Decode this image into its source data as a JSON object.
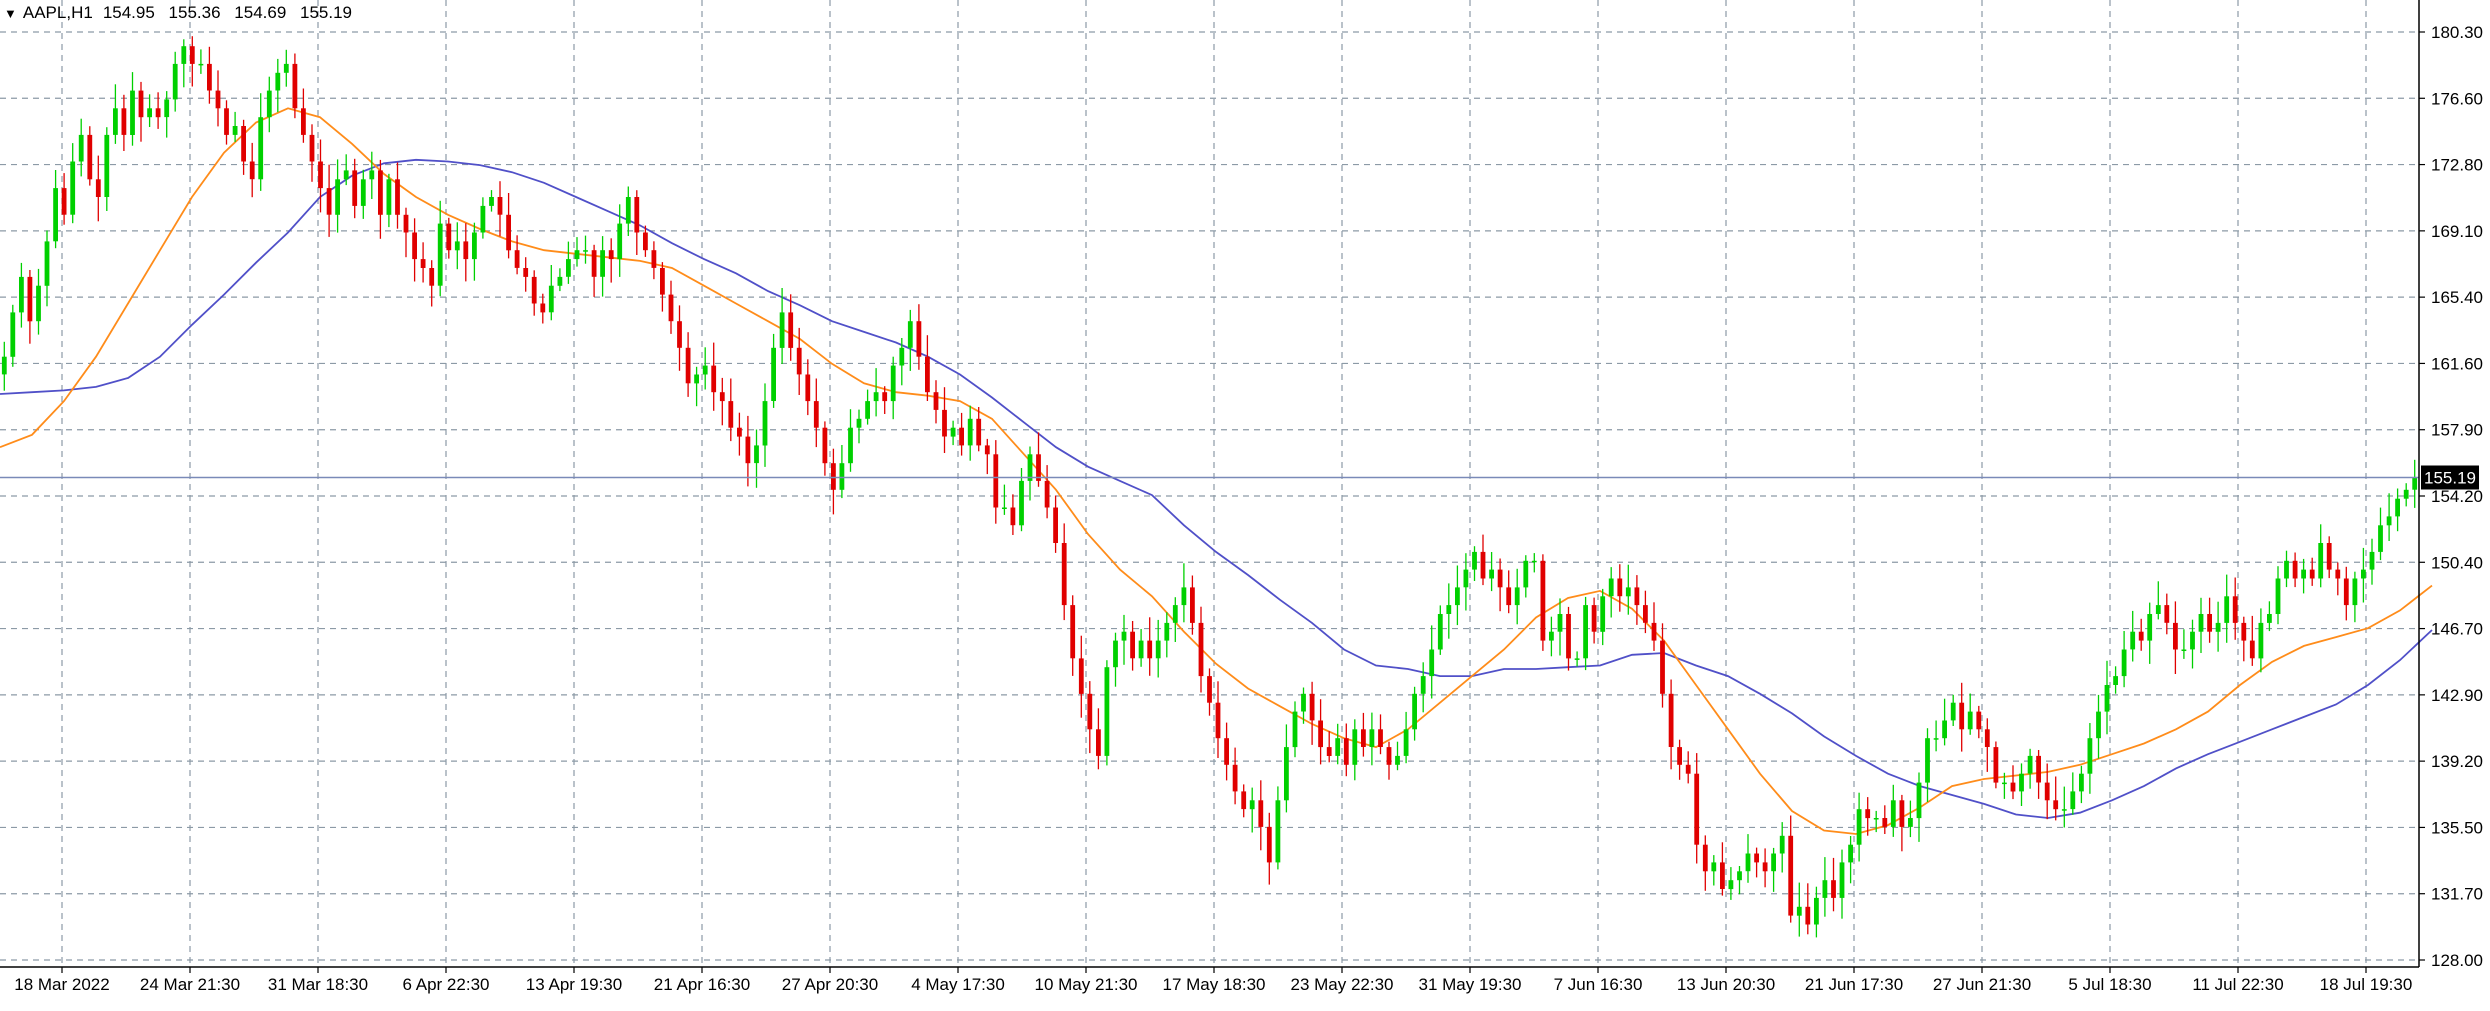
{
  "header": {
    "symbol": "AAPL,H1",
    "open": "154.95",
    "high": "155.36",
    "low": "154.69",
    "close": "155.19"
  },
  "price_label": "155.19",
  "chart_data": {
    "type": "candlestick",
    "symbol": "AAPL",
    "timeframe": "H1",
    "y_ticks": [
      "180.30",
      "176.60",
      "172.80",
      "169.10",
      "165.40",
      "161.60",
      "157.90",
      "154.20",
      "150.40",
      "146.70",
      "142.90",
      "139.20",
      "135.50",
      "131.70",
      "128.00"
    ],
    "ylim": [
      127.2,
      181.7
    ],
    "x_ticks": [
      "18 Mar 2022",
      "24 Mar 21:30",
      "31 Mar 18:30",
      "6 Apr 22:30",
      "13 Apr 19:30",
      "21 Apr 16:30",
      "27 Apr 20:30",
      "4 May 17:30",
      "10 May 21:30",
      "17 May 18:30",
      "23 May 22:30",
      "31 May 19:30",
      "7 Jun 16:30",
      "13 Jun 20:30",
      "21 Jun 17:30",
      "27 Jun 21:30",
      "5 Jul 18:30",
      "11 Jul 22:30",
      "18 Jul 19:30"
    ],
    "grid": true,
    "current_price": 155.19,
    "colors": {
      "up": "#00d000",
      "down": "#e00000",
      "ma_fast": "#ff8c1a",
      "ma_slow": "#5050c8",
      "price_line": "#7a8ab8",
      "grid": "#8c9aa6"
    },
    "closes": [
      162,
      164.5,
      166.5,
      164,
      166,
      168.5,
      171.5,
      170,
      173,
      174.5,
      172,
      171,
      174.5,
      176,
      174.5,
      177,
      175.5,
      176,
      175.5,
      176.5,
      178.5,
      179.5,
      178.5,
      178.5,
      177,
      176,
      174.5,
      175,
      173,
      172,
      175.5,
      177,
      178,
      178.5,
      176,
      174.5,
      173,
      171.5,
      170,
      172,
      172.5,
      170.5,
      172,
      172.5,
      170,
      172,
      170,
      169,
      167.5,
      167,
      166,
      169.5,
      168,
      168.5,
      167.5,
      169,
      170.5,
      171,
      170,
      168,
      167,
      166.5,
      165,
      164.5,
      166,
      166.5,
      167.5,
      168,
      168,
      166.5,
      168,
      167.5,
      169.5,
      171,
      169,
      168,
      167,
      165.5,
      164,
      162.5,
      160.5,
      161,
      161.5,
      160,
      159.5,
      158,
      157.5,
      156,
      157,
      159.5,
      162.5,
      164.5,
      162.5,
      161,
      159.5,
      158,
      156,
      154.5,
      156,
      158,
      158.5,
      159.5,
      160,
      159.5,
      161.5,
      162.5,
      164,
      162,
      160,
      159,
      157.5,
      158,
      157,
      158.5,
      157,
      156.5,
      153.5,
      153.5,
      152.5,
      155,
      156.5,
      155,
      153.5,
      151.5,
      148,
      145,
      143,
      141,
      139.5,
      144.5,
      146,
      146.5,
      145,
      146,
      145,
      146,
      147,
      148,
      149,
      147,
      144,
      142.5,
      140.5,
      139,
      137.5,
      136.5,
      137,
      135.5,
      133.5,
      137,
      140,
      142,
      143,
      141.5,
      140,
      139.5,
      140.5,
      139,
      141,
      140,
      141,
      140,
      139,
      139.5,
      141,
      143,
      144,
      145.5,
      147.5,
      148,
      149,
      150,
      151,
      149.5,
      150,
      149,
      148,
      149,
      150.5,
      150.5,
      146,
      146.5,
      147.5,
      145,
      145,
      148,
      146.5,
      148.5,
      149.5,
      148.5,
      149,
      148,
      147,
      146,
      143,
      140,
      139,
      138.5,
      134.5,
      133,
      133.5,
      132,
      132.5,
      133,
      134,
      133.5,
      133,
      134,
      135,
      130.5,
      131,
      130,
      131.5,
      132.5,
      131.5,
      133.5,
      134.5,
      136.5,
      136,
      136,
      135.5,
      137,
      135.5,
      136,
      138,
      140.5,
      140.5,
      141.5,
      142.5,
      141,
      142,
      141,
      140,
      138,
      138,
      137.5,
      138.5,
      139.5,
      138,
      137,
      136.5,
      136.5,
      137.5,
      138.5,
      140.5,
      142,
      143.5,
      144,
      145.5,
      146.5,
      146,
      147.5,
      148,
      147,
      145.5,
      145.5,
      146.5,
      147.5,
      146.5,
      147,
      148.5,
      147,
      146,
      145,
      147,
      147.5,
      149.5,
      150.5,
      149.5,
      150,
      149.5,
      151.5,
      150,
      149.5,
      148,
      149.5,
      150,
      151,
      152.5,
      153,
      154,
      154.5,
      155.19
    ],
    "ma_fast_path": [
      [
        0,
        156.9
      ],
      [
        0.5,
        157.6
      ],
      [
        1,
        159.5
      ],
      [
        1.5,
        162.0
      ],
      [
        2,
        165.0
      ],
      [
        2.5,
        168.0
      ],
      [
        3,
        171.0
      ],
      [
        3.5,
        173.5
      ],
      [
        4,
        175.2
      ],
      [
        4.5,
        176.0
      ],
      [
        5,
        175.5
      ],
      [
        5.5,
        174.0
      ],
      [
        6,
        172.3
      ],
      [
        6.5,
        171.0
      ],
      [
        7,
        170.0
      ],
      [
        7.5,
        169.2
      ],
      [
        8,
        168.5
      ],
      [
        8.5,
        168.0
      ],
      [
        9,
        167.8
      ],
      [
        9.5,
        167.6
      ],
      [
        10,
        167.4
      ],
      [
        10.5,
        167.0
      ],
      [
        11,
        166.0
      ],
      [
        11.5,
        165.0
      ],
      [
        12,
        164.0
      ],
      [
        12.5,
        163.0
      ],
      [
        13,
        161.6
      ],
      [
        13.5,
        160.5
      ],
      [
        14,
        160.0
      ],
      [
        14.5,
        159.8
      ],
      [
        15,
        159.5
      ],
      [
        15.5,
        158.5
      ],
      [
        16,
        156.5
      ],
      [
        16.5,
        154.5
      ],
      [
        17,
        152.0
      ],
      [
        17.5,
        150.0
      ],
      [
        18,
        148.5
      ],
      [
        18.5,
        146.5
      ],
      [
        19,
        144.7
      ],
      [
        19.5,
        143.3
      ],
      [
        20,
        142.3
      ],
      [
        20.5,
        141.3
      ],
      [
        21,
        140.5
      ],
      [
        21.5,
        140.0
      ],
      [
        22,
        141.0
      ],
      [
        22.5,
        142.5
      ],
      [
        23,
        144.0
      ],
      [
        23.5,
        145.5
      ],
      [
        24,
        147.3
      ],
      [
        24.5,
        148.4
      ],
      [
        25,
        148.8
      ],
      [
        25.5,
        147.8
      ],
      [
        26,
        146.0
      ],
      [
        26.5,
        143.5
      ],
      [
        27,
        141.0
      ],
      [
        27.5,
        138.5
      ],
      [
        28,
        136.4
      ],
      [
        28.5,
        135.3
      ],
      [
        29,
        135.1
      ],
      [
        29.5,
        135.6
      ],
      [
        30,
        136.6
      ],
      [
        30.5,
        137.8
      ],
      [
        31,
        138.2
      ],
      [
        31.5,
        138.4
      ],
      [
        32,
        138.6
      ],
      [
        32.5,
        139.0
      ],
      [
        33,
        139.6
      ],
      [
        33.5,
        140.2
      ],
      [
        34,
        141.0
      ],
      [
        34.5,
        142.0
      ],
      [
        35,
        143.5
      ],
      [
        35.5,
        144.8
      ],
      [
        36,
        145.7
      ],
      [
        36.5,
        146.2
      ],
      [
        37,
        146.7
      ],
      [
        37.5,
        147.7
      ],
      [
        38,
        149.1
      ]
    ],
    "ma_slow_path": [
      [
        0,
        159.9
      ],
      [
        0.5,
        160.0
      ],
      [
        1,
        160.1
      ],
      [
        1.5,
        160.3
      ],
      [
        2,
        160.8
      ],
      [
        2.5,
        162.0
      ],
      [
        3,
        163.8
      ],
      [
        3.5,
        165.5
      ],
      [
        4,
        167.3
      ],
      [
        4.5,
        169.0
      ],
      [
        5,
        171.0
      ],
      [
        5.5,
        172.2
      ],
      [
        6,
        172.9
      ],
      [
        6.5,
        173.1
      ],
      [
        7,
        173.0
      ],
      [
        7.5,
        172.8
      ],
      [
        8,
        172.4
      ],
      [
        8.5,
        171.8
      ],
      [
        9,
        171.0
      ],
      [
        9.5,
        170.2
      ],
      [
        10,
        169.4
      ],
      [
        10.5,
        168.4
      ],
      [
        11,
        167.5
      ],
      [
        11.5,
        166.7
      ],
      [
        12,
        165.7
      ],
      [
        12.5,
        164.9
      ],
      [
        13,
        164.0
      ],
      [
        13.5,
        163.4
      ],
      [
        14,
        162.8
      ],
      [
        14.5,
        162.0
      ],
      [
        15,
        161.0
      ],
      [
        15.5,
        159.7
      ],
      [
        16,
        158.3
      ],
      [
        16.5,
        156.9
      ],
      [
        17,
        155.8
      ],
      [
        17.5,
        155.0
      ],
      [
        18,
        154.2
      ],
      [
        18.5,
        152.5
      ],
      [
        19,
        151.0
      ],
      [
        19.5,
        149.7
      ],
      [
        20,
        148.3
      ],
      [
        20.5,
        147.0
      ],
      [
        21,
        145.5
      ],
      [
        21.5,
        144.6
      ],
      [
        22,
        144.4
      ],
      [
        22.5,
        144.0
      ],
      [
        23,
        144.0
      ],
      [
        23.5,
        144.4
      ],
      [
        24,
        144.4
      ],
      [
        24.5,
        144.5
      ],
      [
        25,
        144.6
      ],
      [
        25.5,
        145.2
      ],
      [
        26,
        145.3
      ],
      [
        26.5,
        144.6
      ],
      [
        27,
        144.0
      ],
      [
        27.5,
        143.0
      ],
      [
        28,
        141.9
      ],
      [
        28.5,
        140.6
      ],
      [
        29,
        139.5
      ],
      [
        29.5,
        138.5
      ],
      [
        30,
        137.8
      ],
      [
        30.5,
        137.3
      ],
      [
        31,
        136.8
      ],
      [
        31.5,
        136.2
      ],
      [
        32,
        136.0
      ],
      [
        32.5,
        136.3
      ],
      [
        33,
        137.0
      ],
      [
        33.5,
        137.8
      ],
      [
        34,
        138.8
      ],
      [
        34.5,
        139.6
      ],
      [
        35,
        140.3
      ],
      [
        35.5,
        141.0
      ],
      [
        36,
        141.7
      ],
      [
        36.5,
        142.4
      ],
      [
        37,
        143.5
      ],
      [
        37.5,
        144.9
      ],
      [
        38,
        146.6
      ]
    ]
  }
}
